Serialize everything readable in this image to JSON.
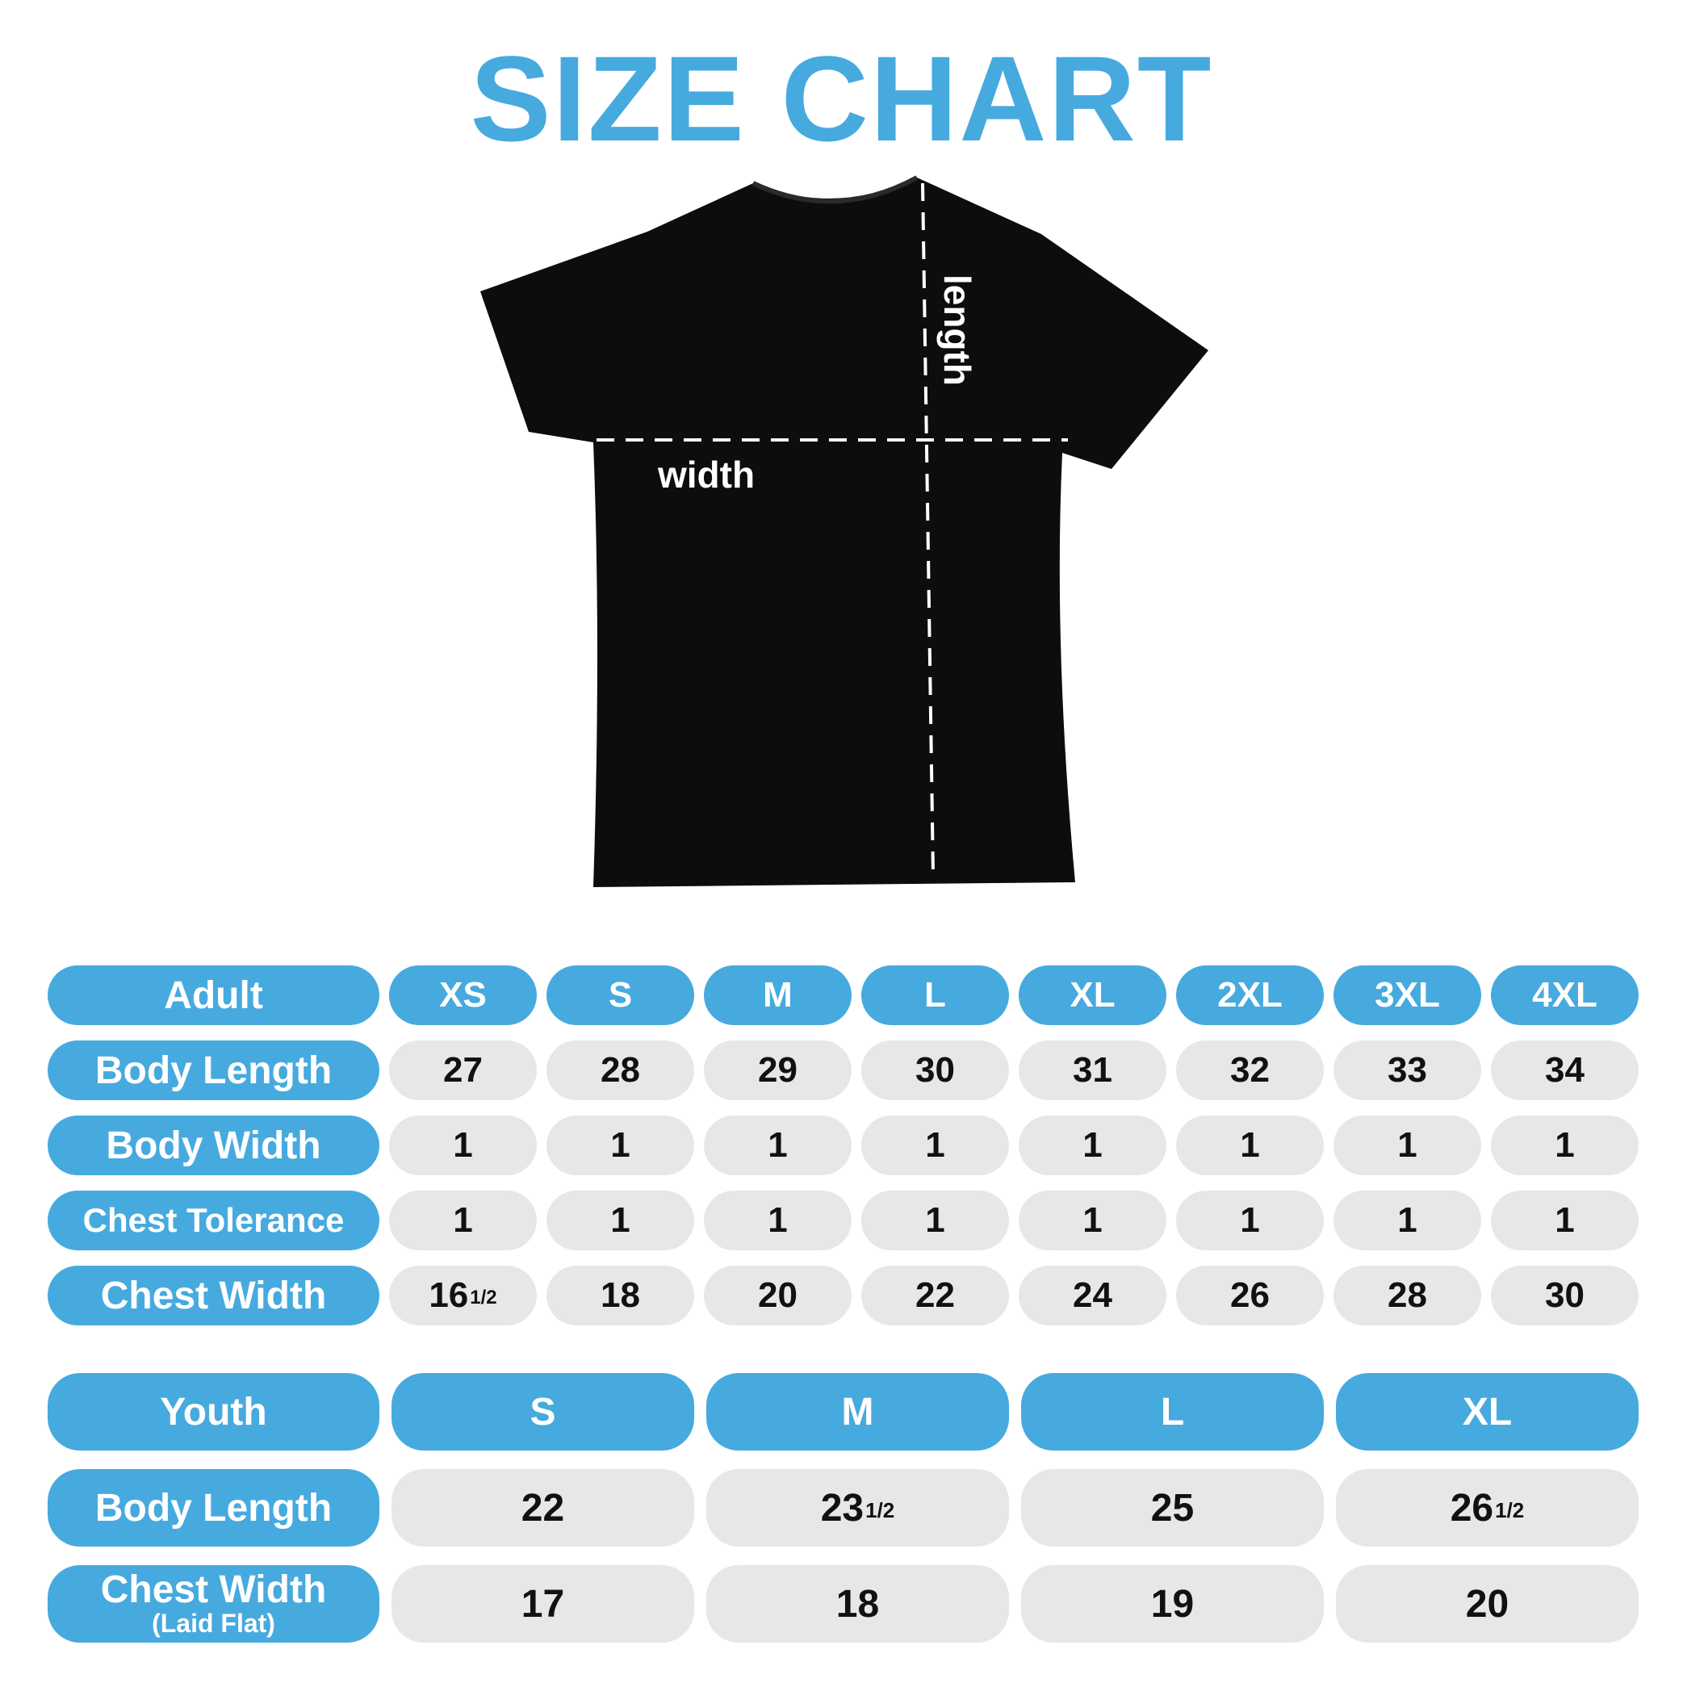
{
  "title": "SIZE CHART",
  "accent_color": "#46aadf",
  "cell_color": "#e6e7e8",
  "diagram": {
    "width_label": "width",
    "length_label": "length"
  },
  "adult": {
    "header": "Adult",
    "sizes": [
      "XS",
      "S",
      "M",
      "L",
      "XL",
      "2XL",
      "3XL",
      "4XL"
    ],
    "rows": [
      {
        "label": "Body Length",
        "values": [
          {
            "w": "27"
          },
          {
            "w": "28"
          },
          {
            "w": "29"
          },
          {
            "w": "30"
          },
          {
            "w": "31"
          },
          {
            "w": "32"
          },
          {
            "w": "33"
          },
          {
            "w": "34"
          }
        ]
      },
      {
        "label": "Body Width",
        "values": [
          {
            "w": "1"
          },
          {
            "w": "1"
          },
          {
            "w": "1"
          },
          {
            "w": "1"
          },
          {
            "w": "1"
          },
          {
            "w": "1"
          },
          {
            "w": "1"
          },
          {
            "w": "1"
          }
        ]
      },
      {
        "label": "Chest Tolerance",
        "values": [
          {
            "w": "1"
          },
          {
            "w": "1"
          },
          {
            "w": "1"
          },
          {
            "w": "1"
          },
          {
            "w": "1"
          },
          {
            "w": "1"
          },
          {
            "w": "1"
          },
          {
            "w": "1"
          }
        ]
      },
      {
        "label": "Chest Width",
        "values": [
          {
            "w": "16",
            "f": "1/2"
          },
          {
            "w": "18"
          },
          {
            "w": "20"
          },
          {
            "w": "22"
          },
          {
            "w": "24"
          },
          {
            "w": "26"
          },
          {
            "w": "28"
          },
          {
            "w": "30"
          }
        ]
      }
    ]
  },
  "youth": {
    "header": "Youth",
    "sizes": [
      "S",
      "M",
      "L",
      "XL"
    ],
    "rows": [
      {
        "label": "Body Length",
        "values": [
          {
            "w": "22"
          },
          {
            "w": "23",
            "f": "1/2"
          },
          {
            "w": "25"
          },
          {
            "w": "26",
            "f": "1/2"
          }
        ]
      },
      {
        "label": "Chest Width",
        "sublabel": "(Laid Flat)",
        "values": [
          {
            "w": "17"
          },
          {
            "w": "18"
          },
          {
            "w": "19"
          },
          {
            "w": "20"
          }
        ]
      }
    ]
  }
}
